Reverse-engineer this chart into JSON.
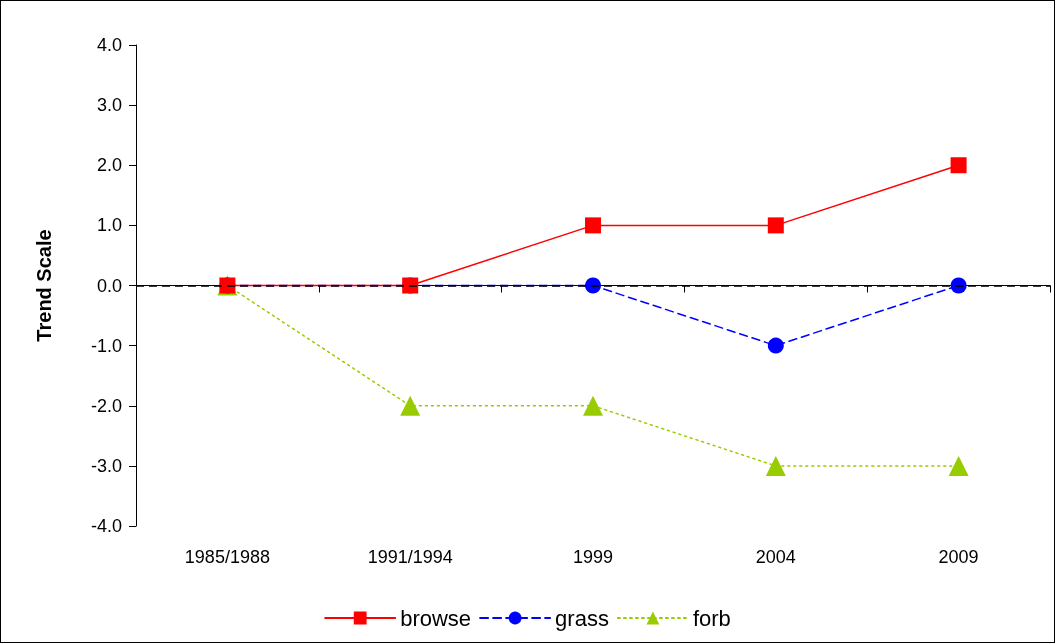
{
  "chart_data": {
    "type": "line",
    "ylabel": "Trend Scale",
    "categories": [
      "1985/1988",
      "1991/1994",
      "1999",
      "2004",
      "2009"
    ],
    "series": [
      {
        "name": "browse",
        "color": "#ff0000",
        "values": [
          0,
          0,
          1,
          1,
          2
        ],
        "marker": "square",
        "line_style": "solid"
      },
      {
        "name": "grass",
        "color": "#0000ff",
        "values": [
          0,
          0,
          0,
          -1,
          0
        ],
        "marker": "circle",
        "line_style": "dashed"
      },
      {
        "name": "forb",
        "color": "#99cc00",
        "values": [
          0,
          -2,
          -2,
          -3,
          -3
        ],
        "marker": "triangle",
        "line_style": "dotted"
      }
    ],
    "ylim": [
      -4,
      4
    ],
    "yticks": [
      {
        "value": -4,
        "label": "-4.0"
      },
      {
        "value": -3,
        "label": "-3.0"
      },
      {
        "value": -2,
        "label": "-2.0"
      },
      {
        "value": -1,
        "label": "-1.0"
      },
      {
        "value": 0,
        "label": "0.0"
      },
      {
        "value": 1,
        "label": "1.0"
      },
      {
        "value": 2,
        "label": "2.0"
      },
      {
        "value": 3,
        "label": "3.0"
      },
      {
        "value": 4,
        "label": "4.0"
      }
    ],
    "ref_lines": [
      {
        "axis": "y",
        "value": 0,
        "color": "#000000",
        "line_style": "dashed"
      }
    ],
    "grid": false,
    "legend": "bottom"
  }
}
